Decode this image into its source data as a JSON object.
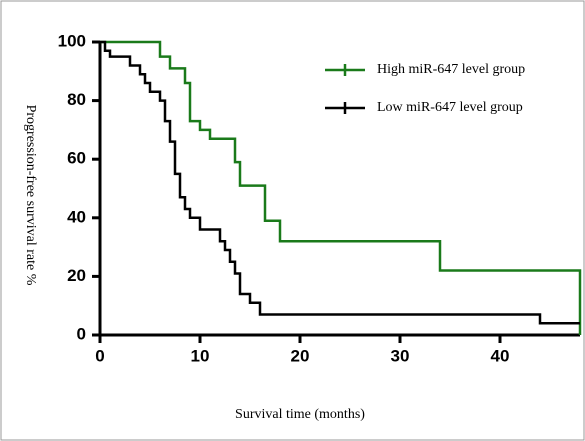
{
  "chart_data": {
    "type": "step",
    "xlabel": "Survival time (months)",
    "ylabel": "Progression-free survival rate %",
    "xlim": [
      0,
      48
    ],
    "xticks": [
      0,
      10,
      20,
      30,
      40
    ],
    "ylim": [
      0,
      100
    ],
    "yticks": [
      0,
      20,
      40,
      60,
      80,
      100
    ],
    "legend": "upper right",
    "series": [
      {
        "name": "High miR-647 level group",
        "color": "#1a7a1a",
        "x": [
          0,
          6,
          7,
          8.5,
          9,
          10,
          11,
          13.5,
          14,
          16.5,
          18,
          34,
          48
        ],
        "values": [
          100,
          95,
          91,
          86,
          73,
          70,
          67,
          59,
          51,
          39,
          32,
          22,
          0
        ]
      },
      {
        "name": "Low miR-647 level group",
        "color": "#000000",
        "x": [
          0,
          0.5,
          1,
          3,
          4,
          4.5,
          5,
          6,
          6.5,
          7,
          7.5,
          8,
          8.5,
          9,
          10,
          12,
          12.5,
          13,
          13.5,
          14,
          15,
          16,
          44,
          48
        ],
        "values": [
          100,
          97,
          95,
          92,
          89,
          86,
          83,
          80,
          73,
          66,
          55,
          47,
          43,
          40,
          36,
          32,
          29,
          25,
          21,
          14,
          11,
          7,
          4,
          4
        ]
      }
    ]
  }
}
